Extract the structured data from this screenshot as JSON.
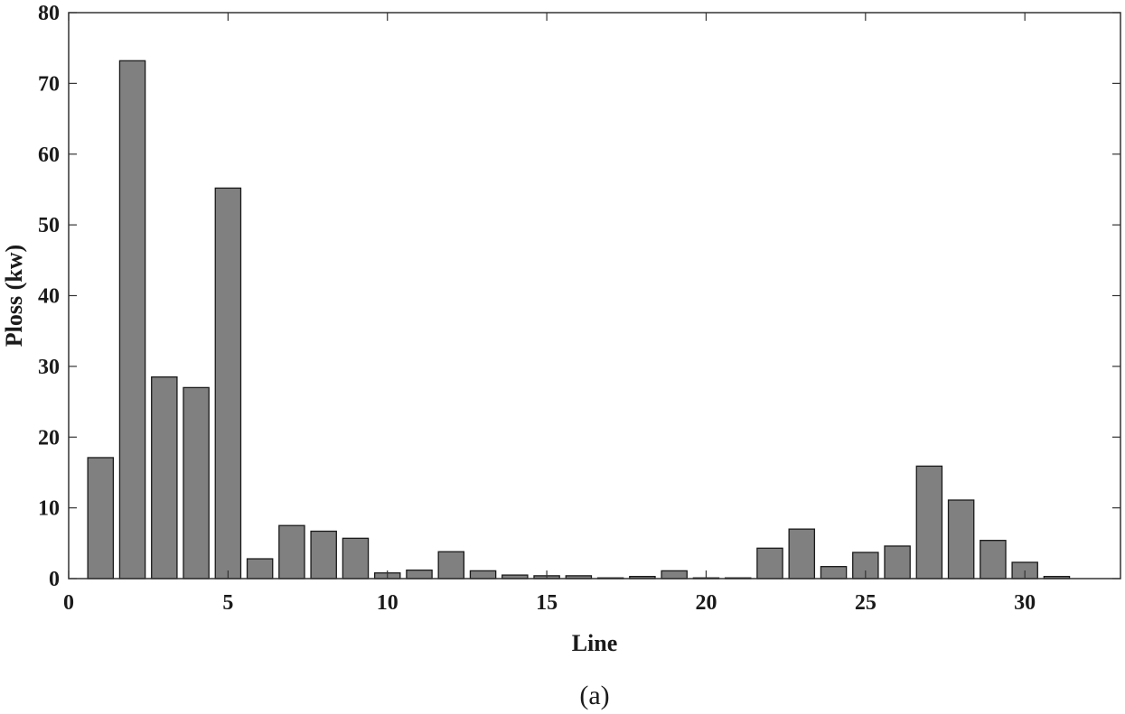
{
  "chart_data": {
    "type": "bar",
    "title": "",
    "xlabel": "Line",
    "ylabel": "Ploss (kw)",
    "caption": "(a)",
    "xlim": [
      0,
      33
    ],
    "ylim": [
      0,
      80
    ],
    "xticks": [
      0,
      5,
      10,
      15,
      20,
      25,
      30
    ],
    "yticks": [
      0,
      10,
      20,
      30,
      40,
      50,
      60,
      70,
      80
    ],
    "grid": false,
    "legend": "none",
    "bar_color": "#808080",
    "categories": [
      1,
      2,
      3,
      4,
      5,
      6,
      7,
      8,
      9,
      10,
      11,
      12,
      13,
      14,
      15,
      16,
      17,
      18,
      19,
      20,
      21,
      22,
      23,
      24,
      25,
      26,
      27,
      28,
      29,
      30,
      31
    ],
    "values": [
      17.1,
      73.2,
      28.5,
      27.0,
      55.2,
      2.8,
      7.5,
      6.7,
      5.7,
      0.8,
      1.2,
      3.8,
      1.1,
      0.5,
      0.4,
      0.4,
      0.1,
      0.3,
      1.1,
      0.1,
      0.1,
      4.3,
      7.0,
      1.7,
      3.7,
      4.6,
      15.9,
      11.1,
      5.4,
      2.3,
      0.3
    ]
  }
}
